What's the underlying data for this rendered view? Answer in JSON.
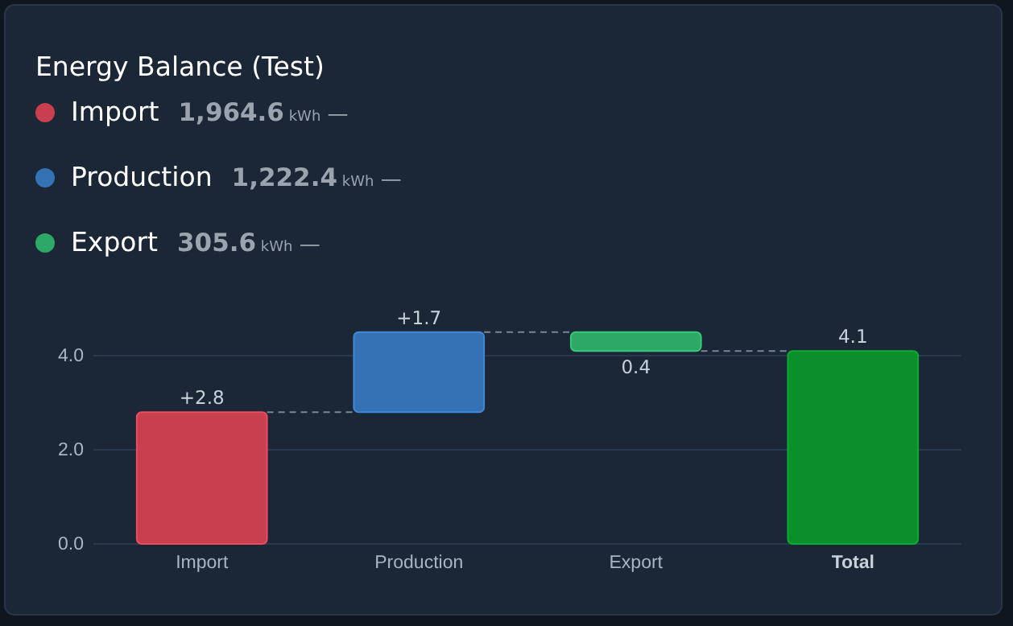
{
  "chart_data": {
    "type": "bar",
    "title": "Energy Balance (Test)",
    "categories": [
      "Import",
      "Production",
      "Export",
      "Total"
    ],
    "values": [
      2.8,
      1.7,
      -0.4,
      4.1
    ],
    "base": [
      0,
      2.8,
      4.5,
      0
    ],
    "colors": [
      "#c8404f",
      "#3572b5",
      "#2ea866",
      "#0a8f2a"
    ],
    "value_labels": [
      "+2.8",
      "+1.7",
      "0.4",
      "4.1"
    ],
    "ylim": [
      0,
      4.5
    ],
    "yticks": [
      {
        "value": 0,
        "label": "0.0"
      },
      {
        "value": 2,
        "label": "2.0"
      },
      {
        "value": 4,
        "label": "4.0"
      }
    ],
    "grid": "y",
    "annotations": [
      "1,964.6 kWh —",
      "1,222.4 kWh —",
      "305.6 kWh —"
    ]
  }
}
